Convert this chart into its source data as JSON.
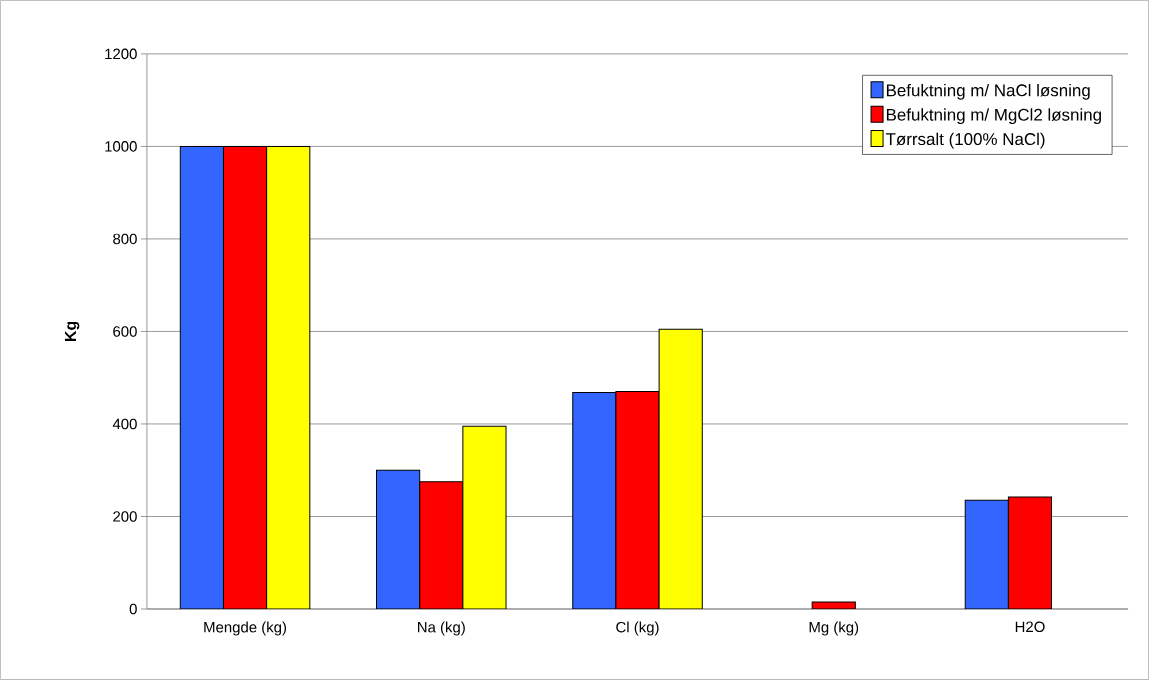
{
  "chart_data": {
    "type": "bar",
    "ylabel": "Kg",
    "categories": [
      "Mengde (kg)",
      "Na (kg)",
      "Cl (kg)",
      "Mg (kg)",
      "H2O"
    ],
    "series": [
      {
        "name": "Befuktning m/ NaCl løsning",
        "color": "#3366ff",
        "values": [
          1000,
          300,
          468,
          null,
          235
        ]
      },
      {
        "name": "Befuktning m/ MgCl2 løsning",
        "color": "#ff0000",
        "values": [
          1000,
          275,
          470,
          15,
          242
        ]
      },
      {
        "name": "Tørrsalt (100% NaCl)",
        "color": "#ffff00",
        "values": [
          1000,
          395,
          605,
          null,
          null
        ]
      }
    ],
    "ylim": [
      0,
      1200
    ],
    "yticks": [
      0,
      200,
      400,
      600,
      800,
      1000,
      1200
    ],
    "grid": "y",
    "legend": "top right"
  }
}
